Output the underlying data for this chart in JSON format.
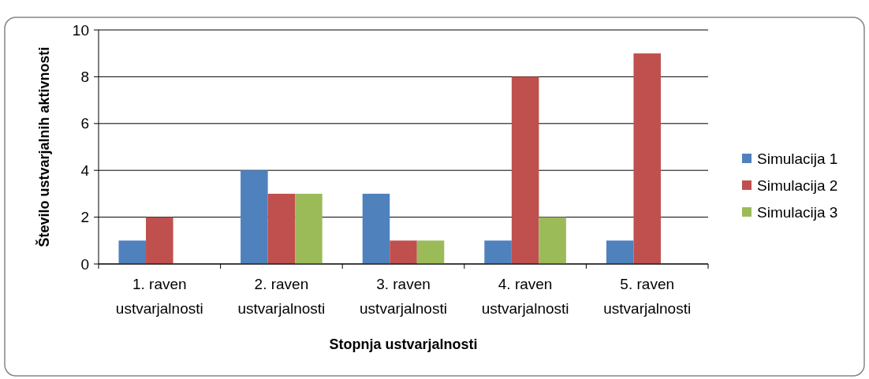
{
  "chart_data": {
    "type": "bar",
    "xlabel": "Stopnja ustvarjalnosti",
    "ylabel": "Število ustvarjalnih aktivnosti",
    "categories": [
      "1. raven ustvarjalnosti",
      "2. raven ustvarjalnosti",
      "3. raven ustvarjalnosti",
      "4. raven ustvarjalnosti",
      "5. raven ustvarjalnosti"
    ],
    "series": [
      {
        "name": "Simulacija 1",
        "color": "#4f81bd",
        "values": [
          1,
          4,
          3,
          1,
          1
        ]
      },
      {
        "name": "Simulacija 2",
        "color": "#c0504d",
        "values": [
          2,
          3,
          1,
          8,
          9
        ]
      },
      {
        "name": "Simulacija 3",
        "color": "#9bbb59",
        "values": [
          0,
          3,
          1,
          2,
          0
        ]
      }
    ],
    "ylim": [
      0,
      10
    ],
    "yticks": [
      0,
      2,
      4,
      6,
      8,
      10
    ],
    "grid": "y",
    "legend": "right"
  }
}
